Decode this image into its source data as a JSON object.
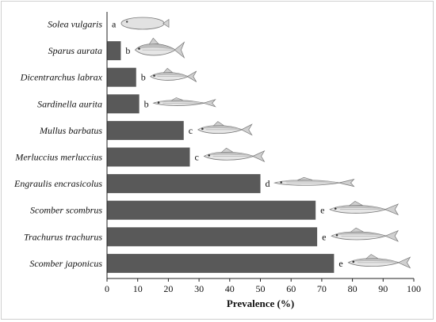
{
  "chart_data": {
    "type": "bar",
    "orientation": "horizontal",
    "categories": [
      "Solea vulgaris",
      "Sparus aurata",
      "Dicentrarchus labrax",
      "Sardinella aurita",
      "Mullus barbatus",
      "Merluccius merluccius",
      "Engraulis encrasicolus",
      "Scomber scombrus",
      "Trachurus trachurus",
      "Scomber japonicus"
    ],
    "values": [
      0,
      4.5,
      9.5,
      10.5,
      25,
      27,
      50,
      68,
      68.5,
      74
    ],
    "group_letters": [
      "a",
      "b",
      "b",
      "b",
      "c",
      "c",
      "d",
      "e",
      "e",
      "e"
    ],
    "xlabel": "Prevalence (%)",
    "xlim": [
      0,
      100
    ],
    "xticks": [
      "0",
      "10",
      "20",
      "30",
      "40",
      "50",
      "60",
      "70",
      "80",
      "90",
      "100"
    ],
    "grid": false,
    "bar_color": "#595959",
    "fish_icons": [
      "flatfish-icon",
      "seabream-icon",
      "seabass-icon",
      "sardinella-icon",
      "red-mullet-icon",
      "hake-icon",
      "anchovy-icon",
      "mackerel-icon",
      "horse-mackerel-icon",
      "chub-mackerel-icon"
    ]
  }
}
